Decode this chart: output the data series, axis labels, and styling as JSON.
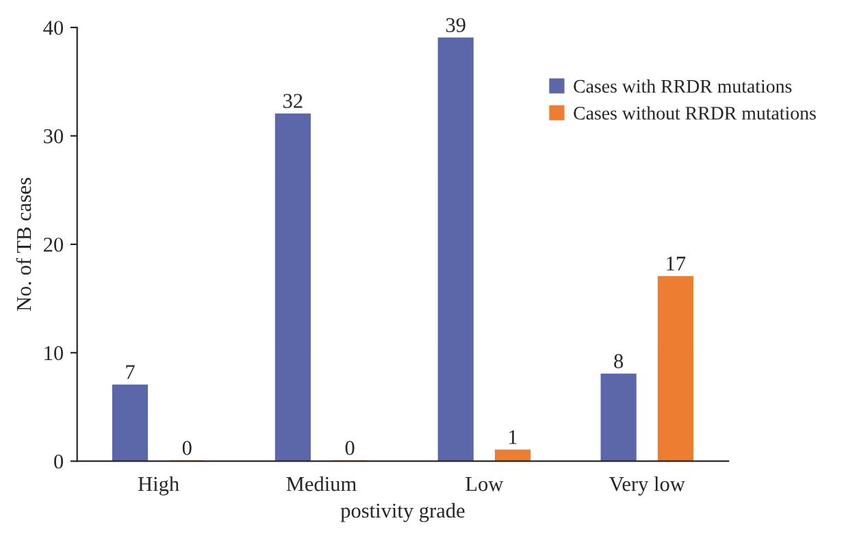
{
  "chart_data": {
    "type": "bar",
    "ylabel": "No. of TB cases",
    "xlabel": "postivity grade",
    "categories": [
      "High",
      "Medium",
      "Low",
      "Very low"
    ],
    "series": [
      {
        "name": "Cases with RRDR mutations",
        "color": "#5b67a8",
        "values": [
          7,
          32,
          39,
          8
        ]
      },
      {
        "name": "Cases without RRDR mutations",
        "color": "#ed7d31",
        "values": [
          0,
          0,
          1,
          17
        ]
      }
    ],
    "ylim": [
      0,
      40
    ],
    "yticks": [
      0,
      10,
      20,
      30,
      40
    ],
    "data_labels": true,
    "grid": false,
    "legend": "top right"
  }
}
